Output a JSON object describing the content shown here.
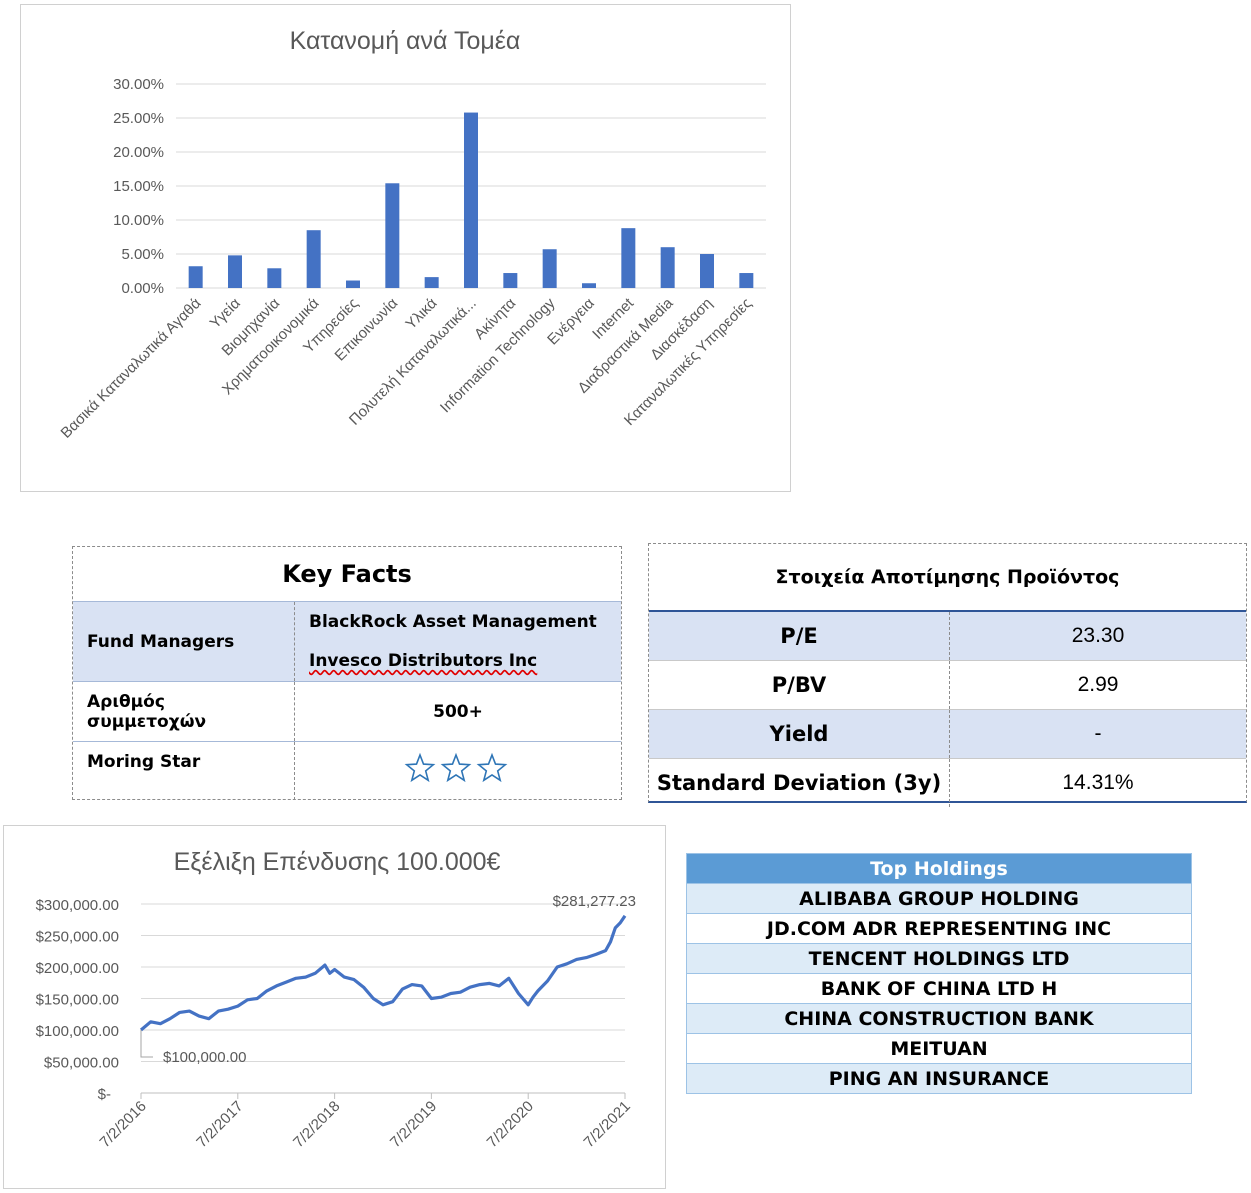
{
  "chart_data": [
    {
      "type": "bar",
      "title": "Κατανομή ανά Τομέα",
      "categories": [
        "Βασικά Καταναλωτικά Αγαθά",
        "Υγεία",
        "Βιομηχανία",
        "Χρηματοοικονομικά",
        "Υπηρεσίες",
        "Επικοινωνία",
        "Υλικά",
        "Πολυτελή Καταναλωτικά...",
        "Ακίνητα",
        "Information Technology",
        "Ενέργεια",
        "Internet",
        "Διαδραστικά Media",
        "Διασκέδαση",
        "Καταναλωτικές Υπηρεσίες"
      ],
      "values": [
        3.2,
        4.8,
        2.9,
        8.5,
        1.1,
        15.4,
        1.6,
        25.8,
        2.2,
        5.7,
        0.7,
        8.8,
        6.0,
        5.0,
        2.2
      ],
      "y_ticks": [
        "0.00%",
        "5.00%",
        "10.00%",
        "15.00%",
        "20.00%",
        "25.00%",
        "30.00%"
      ],
      "ylim": [
        0,
        30
      ],
      "grid": true,
      "color": "#4472c4"
    },
    {
      "type": "line",
      "title": "Εξέλιξη Επένδυσης 100.000€",
      "x_ticks": [
        "7/2/2016",
        "7/2/2017",
        "7/2/2018",
        "7/2/2019",
        "7/2/2020",
        "7/2/2021"
      ],
      "y_ticks": [
        "$-",
        "$50,000.00",
        "$100,000.00",
        "$150,000.00",
        "$200,000.00",
        "$250,000.00",
        "$300,000.00"
      ],
      "ylim": [
        0,
        300000
      ],
      "xlim": [
        2016.1,
        2021.1
      ],
      "start_label": "$100,000.00",
      "end_label": "$281,277.23",
      "color": "#4472c4",
      "x": [
        2016.1,
        2016.2,
        2016.3,
        2016.4,
        2016.5,
        2016.6,
        2016.7,
        2016.8,
        2016.9,
        2017.0,
        2017.1,
        2017.2,
        2017.3,
        2017.4,
        2017.5,
        2017.6,
        2017.7,
        2017.8,
        2017.9,
        2018.0,
        2018.05,
        2018.1,
        2018.2,
        2018.3,
        2018.4,
        2018.5,
        2018.6,
        2018.7,
        2018.8,
        2018.9,
        2019.0,
        2019.1,
        2019.2,
        2019.3,
        2019.4,
        2019.5,
        2019.6,
        2019.7,
        2019.8,
        2019.9,
        2020.0,
        2020.1,
        2020.15,
        2020.2,
        2020.3,
        2020.4,
        2020.5,
        2020.6,
        2020.7,
        2020.8,
        2020.9,
        2020.95,
        2021.0,
        2021.05,
        2021.1
      ],
      "y": [
        100000,
        113000,
        110000,
        118000,
        128000,
        130000,
        122000,
        118000,
        130000,
        133000,
        138000,
        148000,
        150000,
        162000,
        170000,
        176000,
        182000,
        184000,
        190000,
        203000,
        190000,
        196000,
        184000,
        180000,
        168000,
        150000,
        140000,
        145000,
        165000,
        172000,
        170000,
        150000,
        152000,
        158000,
        160000,
        168000,
        172000,
        174000,
        170000,
        182000,
        158000,
        140000,
        152000,
        162000,
        178000,
        200000,
        205000,
        212000,
        215000,
        220000,
        226000,
        240000,
        262000,
        270000,
        281277
      ]
    }
  ],
  "key_facts": {
    "title": "Key Facts",
    "rows": [
      {
        "label": "Fund Managers",
        "values": [
          "BlackRock Asset Management",
          "Invesco Distributors Inc"
        ]
      },
      {
        "label": "Αριθμός συμμετοχών",
        "value": "500+"
      },
      {
        "label": "Moring Star",
        "stars": 3
      }
    ]
  },
  "valuation": {
    "title": "Στοιχεία Αποτίμησης Προϊόντος",
    "rows": [
      {
        "label": "P/E",
        "value": "23.30"
      },
      {
        "label": "P/BV",
        "value": "2.99"
      },
      {
        "label": "Yield",
        "value": "-"
      },
      {
        "label": "Standard Deviation (3y)",
        "value": "14.31%"
      }
    ]
  },
  "holdings": {
    "title": "Top Holdings",
    "items": [
      "ALIBABA GROUP HOLDING",
      "JD.COM ADR REPRESENTING INC",
      "TENCENT HOLDINGS LTD",
      "BANK OF CHINA LTD H",
      "CHINA CONSTRUCTION BANK",
      "MEITUAN",
      "PING AN INSURANCE"
    ]
  }
}
